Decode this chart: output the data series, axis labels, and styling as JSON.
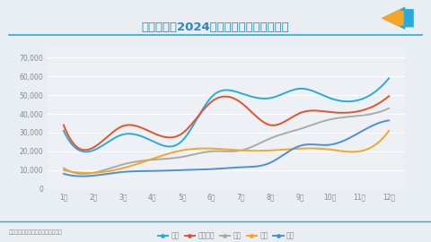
{
  "title": "部分新势力2024年销量走势（单位：辆）",
  "footnote": "数据来源：公开数据，盖世汽车整理",
  "months": [
    "1月",
    "2月",
    "3月",
    "4月",
    "5月",
    "6月",
    "7月",
    "8月",
    "9月",
    "10月",
    "11月",
    "12月"
  ],
  "series": [
    {
      "name": "理想",
      "color": "#29AADF",
      "data": [
        31000,
        20500,
        29000,
        25500,
        25500,
        49000,
        51000,
        48500,
        53500,
        48500,
        47500,
        59000
      ]
    },
    {
      "name": "鸿蒙智行",
      "color": "#E8522A",
      "data": [
        34000,
        22000,
        33500,
        30000,
        29500,
        46500,
        46000,
        34000,
        40500,
        41000,
        41500,
        49500
      ]
    },
    {
      "name": "零跑",
      "color": "#AAAAAA",
      "data": [
        11000,
        8500,
        13000,
        15500,
        17000,
        20000,
        20500,
        27000,
        32000,
        37000,
        39000,
        43000
      ]
    },
    {
      "name": "蔚来",
      "color": "#F5A623",
      "data": [
        10000,
        8500,
        11000,
        16000,
        20500,
        21500,
        20500,
        20500,
        21500,
        21000,
        20000,
        31000
      ]
    },
    {
      "name": "小鹏",
      "color": "#4A90D9",
      "data": [
        8000,
        7000,
        9000,
        9500,
        10000,
        10500,
        11500,
        14000,
        23000,
        23500,
        30000,
        36500
      ]
    }
  ],
  "ylim": [
    0,
    75000
  ],
  "yticks": [
    0,
    10000,
    20000,
    30000,
    40000,
    50000,
    60000,
    70000
  ],
  "bg_color": "#E9EEF3",
  "plot_bg_color": "#EDF1F6",
  "grid_color": "#FFFFFF",
  "title_color": "#2E86C1",
  "tick_color": "#888888",
  "title_line_color": "#29AADF",
  "bottom_line_color": "#29AADF",
  "icon_blue": "#29AADF",
  "icon_orange": "#F5A623"
}
